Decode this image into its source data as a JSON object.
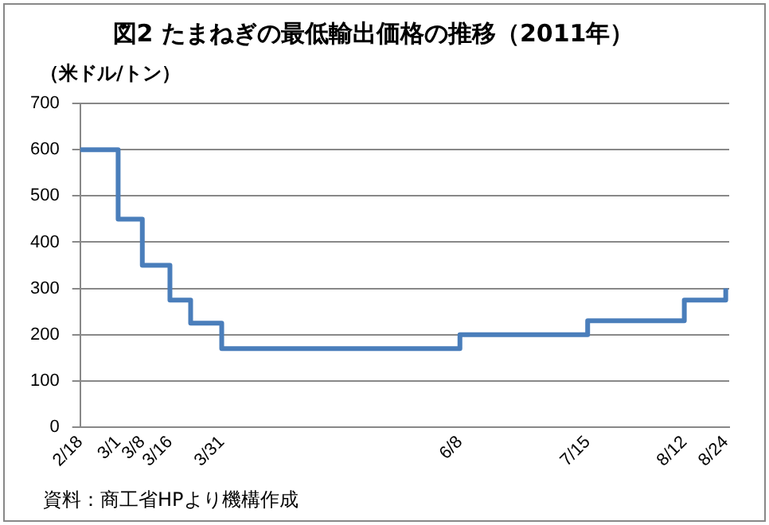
{
  "chart_data": {
    "type": "step",
    "title": "図2 たまねぎの最低輸出価格の推移（2011年）",
    "ylabel": "（米ドル/トン）",
    "x": [
      "2011-02-18",
      "2011-03-01",
      "2011-03-08",
      "2011-03-16",
      "2011-03-22",
      "2011-03-31",
      "2011-06-08",
      "2011-07-15",
      "2011-08-12",
      "2011-08-24"
    ],
    "series": [
      {
        "color": "#4a7ebb",
        "values": [
          600,
          450,
          350,
          275,
          225,
          170,
          200,
          230,
          275,
          300
        ]
      }
    ],
    "xlim": [
      "2011-02-18",
      "2011-08-25"
    ],
    "xticks": [
      {
        "value": "2011-02-18",
        "label": "2/18"
      },
      {
        "value": "2011-03-01",
        "label": "3/1"
      },
      {
        "value": "2011-03-08",
        "label": "3/8"
      },
      {
        "value": "2011-03-16",
        "label": "3/16"
      },
      {
        "value": "2011-03-31",
        "label": "3/31"
      },
      {
        "value": "2011-06-08",
        "label": "6/8"
      },
      {
        "value": "2011-07-15",
        "label": "7/15"
      },
      {
        "value": "2011-08-12",
        "label": "8/12"
      },
      {
        "value": "2011-08-24",
        "label": "8/24"
      }
    ],
    "ylim": [
      0,
      700
    ],
    "yticks": [
      0,
      100,
      200,
      300,
      400,
      500,
      600,
      700
    ],
    "grid": "y",
    "legend": false,
    "annotations": [
      "資料：商工省HPより機構作成"
    ]
  }
}
